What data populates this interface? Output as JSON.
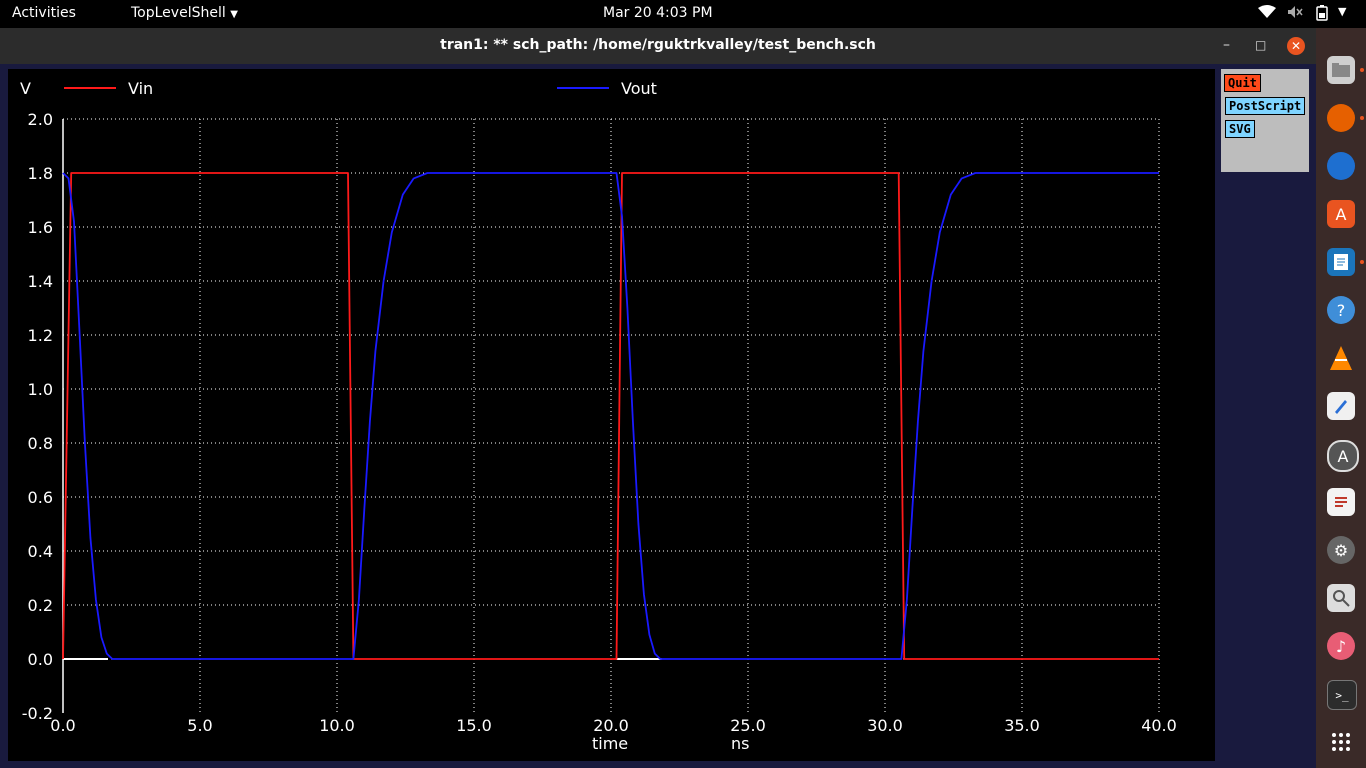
{
  "topbar": {
    "activities": "Activities",
    "app_menu": "TopLevelShell",
    "datetime": "Mar 20   4:03 PM"
  },
  "window": {
    "title": "tran1: ** sch_path: /home/rguktrkvalley/test_bench.sch",
    "minimize": "–",
    "maximize": "□",
    "close": "✕"
  },
  "side_panel": {
    "quit": "Quit",
    "postscript": "PostScript",
    "svg": "SVG"
  },
  "dock": {
    "items": [
      "files-icon",
      "firefox-icon",
      "thunderbird-icon",
      "software-icon",
      "writer-icon",
      "help-icon",
      "vlc-icon",
      "text-editor-icon",
      "app-center-icon",
      "document-viewer-icon",
      "settings-icon",
      "image-viewer-icon",
      "rhythmbox-icon",
      "terminal-icon"
    ],
    "app_grid": "show-applications-icon"
  },
  "chart_data": {
    "type": "line",
    "ylabel": "V",
    "xlabel": "time",
    "xunit": "ns",
    "xlim": [
      0,
      40
    ],
    "ylim": [
      -0.2,
      2.0
    ],
    "xticks": [
      "0.0",
      "5.0",
      "10.0",
      "15.0",
      "20.0",
      "25.0",
      "30.0",
      "35.0",
      "40.0"
    ],
    "yticks": [
      "2.0",
      "1.8",
      "1.6",
      "1.4",
      "1.2",
      "1.0",
      "0.8",
      "0.6",
      "0.4",
      "0.2",
      "0.0",
      "-0.2"
    ],
    "grid": true,
    "legend": "top",
    "series": [
      {
        "name": "Vin",
        "color": "#ff1a1a",
        "x": [
          0.0,
          0.3,
          10.4,
          10.6,
          20.2,
          20.4,
          30.5,
          30.7,
          40.0
        ],
        "y": [
          0.0,
          1.8,
          1.8,
          0.0,
          0.0,
          1.8,
          1.8,
          0.0,
          0.0
        ]
      },
      {
        "name": "Vout",
        "color": "#1a1aff",
        "x": [
          0.0,
          0.2,
          0.4,
          0.6,
          0.8,
          1.0,
          1.2,
          1.4,
          1.6,
          1.8,
          10.0,
          10.6,
          10.8,
          11.0,
          11.2,
          11.4,
          11.7,
          12.0,
          12.4,
          12.8,
          13.3,
          14.0,
          20.2,
          20.4,
          20.6,
          20.8,
          21.0,
          21.2,
          21.4,
          21.6,
          21.8,
          30.6,
          30.8,
          31.0,
          31.2,
          31.4,
          31.7,
          32.0,
          32.4,
          32.8,
          33.3,
          34.0,
          40.0
        ],
        "y": [
          1.8,
          1.78,
          1.62,
          1.22,
          0.8,
          0.45,
          0.22,
          0.08,
          0.02,
          0.0,
          0.0,
          0.0,
          0.22,
          0.56,
          0.88,
          1.14,
          1.4,
          1.58,
          1.72,
          1.78,
          1.8,
          1.8,
          1.8,
          1.64,
          1.3,
          0.88,
          0.5,
          0.24,
          0.09,
          0.02,
          0.0,
          0.0,
          0.22,
          0.56,
          0.88,
          1.14,
          1.4,
          1.58,
          1.72,
          1.78,
          1.8,
          1.8,
          1.8
        ]
      }
    ]
  }
}
